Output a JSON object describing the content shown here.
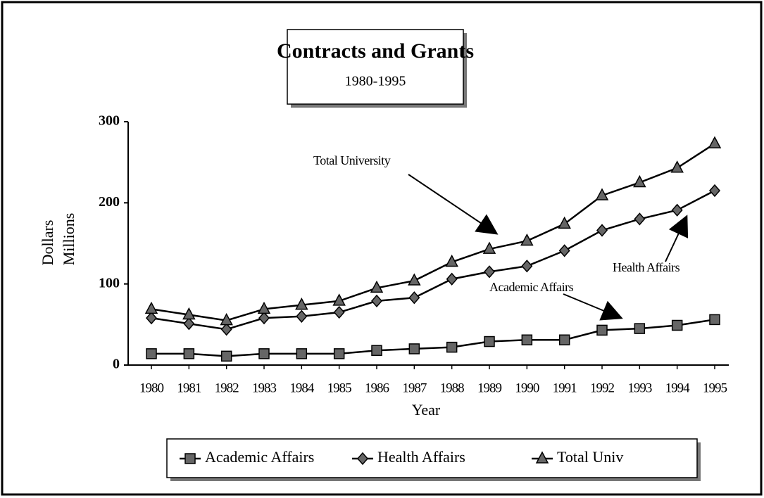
{
  "chart_data": {
    "type": "line",
    "title": "Contracts and Grants",
    "subtitle": "1980-1995",
    "y_label": [
      "Dollars",
      "Millions"
    ],
    "x_label": "Year",
    "categories": [
      "1980",
      "1981",
      "1982",
      "1983",
      "1984",
      "1985",
      "1986",
      "1987",
      "1988",
      "1989",
      "1990",
      "1991",
      "1992",
      "1993",
      "1994",
      "1995"
    ],
    "series": [
      {
        "name": "Academic Affairs",
        "color": "#000000",
        "marker": "square",
        "values": [
          14,
          14,
          11,
          14,
          14,
          14,
          18,
          20,
          22,
          29,
          31,
          31,
          43,
          45,
          49,
          56
        ]
      },
      {
        "name": "Health Affairs",
        "color": "#000000",
        "marker": "diamond",
        "values": [
          58,
          51,
          44,
          58,
          60,
          65,
          79,
          83,
          106,
          115,
          122,
          141,
          166,
          180,
          191,
          215
        ]
      },
      {
        "name": "Total Univ",
        "color": "#000000",
        "marker": "triangle",
        "values": [
          69,
          62,
          55,
          69,
          74,
          79,
          95,
          104,
          127,
          143,
          153,
          174,
          209,
          225,
          243,
          273
        ]
      }
    ],
    "annotations": [
      "Total University",
      "Health Affairs",
      "Academic Affairs"
    ],
    "ylim": [
      0,
      300
    ],
    "yticks": [
      0,
      100,
      200,
      300
    ],
    "grid": false,
    "legend": "bottom"
  }
}
